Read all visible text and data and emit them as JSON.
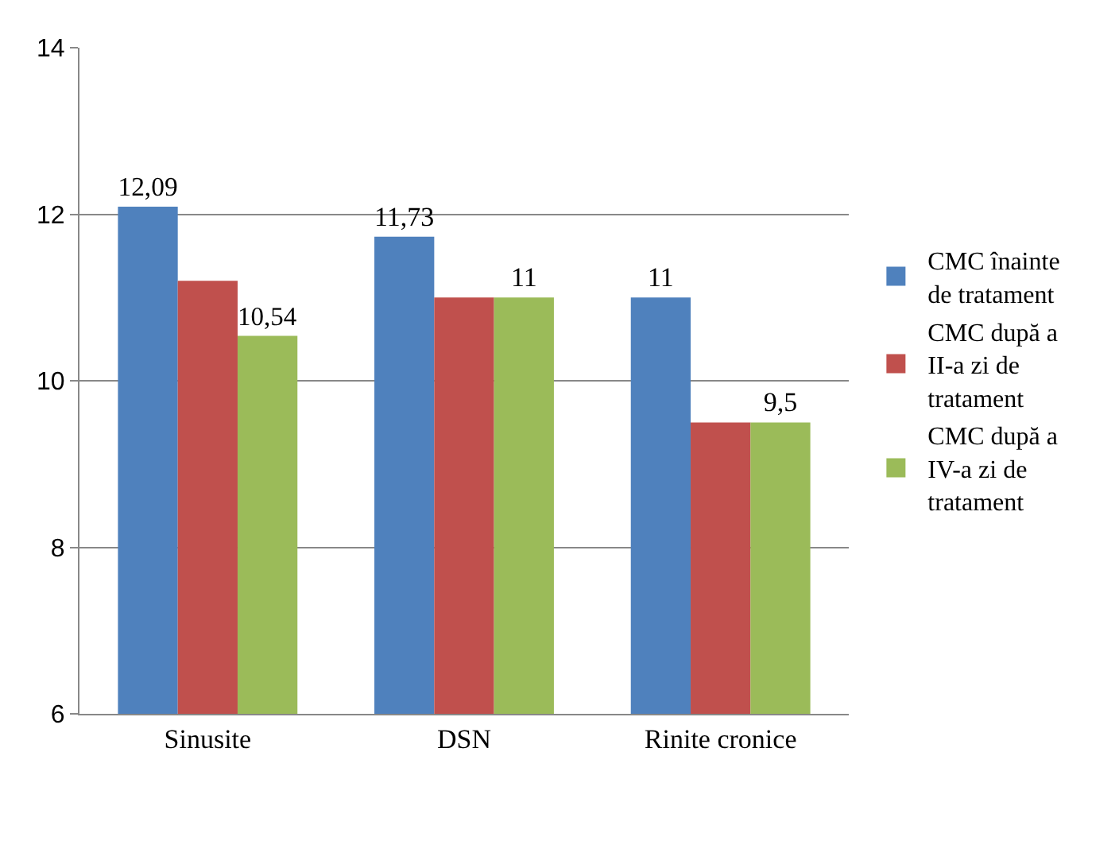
{
  "chart_data": {
    "type": "bar",
    "categories": [
      "Sinusite",
      "DSN",
      "Rinite cronice"
    ],
    "series": [
      {
        "name": "CMC înainte de tratament",
        "color": "#4f81bd",
        "values": [
          12.09,
          11.73,
          11
        ],
        "value_labels": [
          "12,09",
          "11,73",
          "11"
        ]
      },
      {
        "name": "CMC după a II-a zi de tratament",
        "color": "#c0504d",
        "values": [
          11.2,
          11,
          9.5
        ],
        "value_labels": [
          null,
          null,
          null
        ]
      },
      {
        "name": "CMC după a IV-a zi de tratament",
        "color": "#9bbb59",
        "values": [
          10.54,
          11,
          9.5
        ],
        "value_labels": [
          "10,54",
          "11",
          "9,5"
        ]
      }
    ],
    "ylim": [
      6,
      14
    ],
    "yticks": [
      6,
      8,
      10,
      12,
      14
    ],
    "grid": "y",
    "legend": "right"
  }
}
